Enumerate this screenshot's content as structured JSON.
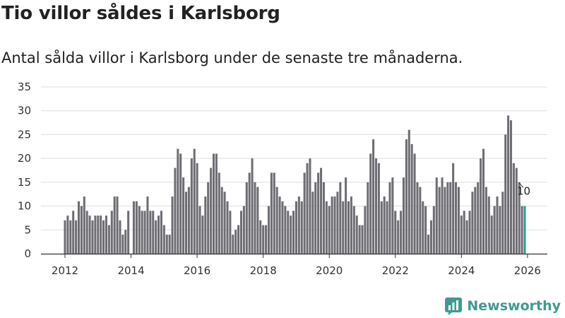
{
  "title": "Tio villor såldes i Karlsborg",
  "subtitle": "Antal sålda villor i Karlsborg under de senaste tre månaderna.",
  "brand": {
    "name": "Newsworthy"
  },
  "colors": {
    "bar": "#6e6d73",
    "highlight": "#2a9d8f",
    "grid": "#dddddd",
    "brand": "#3f9a91"
  },
  "chart_data": {
    "type": "bar",
    "title": "Tio villor såldes i Karlsborg",
    "xlabel": "",
    "ylabel": "",
    "ylim": [
      0,
      35
    ],
    "yticks": [
      0,
      5,
      10,
      15,
      20,
      25,
      30,
      35
    ],
    "xticks": [
      "2012",
      "2014",
      "2016",
      "2018",
      "2020",
      "2022",
      "2024",
      "2026"
    ],
    "start": "2012-01",
    "end": "2026-01",
    "highlight_label": "10",
    "values": [
      7,
      8,
      7,
      9,
      7,
      11,
      10,
      12,
      9,
      8,
      7,
      8,
      8,
      8,
      7,
      8,
      6,
      9,
      12,
      12,
      7,
      4,
      5,
      9,
      0,
      11,
      11,
      10,
      9,
      9,
      12,
      9,
      9,
      7,
      8,
      9,
      6,
      4,
      4,
      12,
      18,
      22,
      21,
      16,
      13,
      14,
      20,
      22,
      19,
      10,
      8,
      12,
      15,
      18,
      21,
      21,
      17,
      14,
      13,
      11,
      9,
      4,
      5,
      6,
      9,
      10,
      15,
      17,
      20,
      15,
      14,
      7,
      6,
      6,
      10,
      17,
      17,
      14,
      12,
      11,
      10,
      9,
      8,
      9,
      11,
      12,
      11,
      17,
      19,
      20,
      13,
      15,
      17,
      18,
      15,
      11,
      10,
      12,
      12,
      13,
      15,
      11,
      16,
      11,
      12,
      10,
      8,
      6,
      6,
      10,
      15,
      21,
      24,
      20,
      19,
      11,
      12,
      11,
      15,
      16,
      9,
      7,
      9,
      16,
      24,
      26,
      23,
      21,
      15,
      14,
      11,
      10,
      4,
      7,
      10,
      16,
      14,
      16,
      14,
      15,
      15,
      19,
      15,
      14,
      8,
      9,
      7,
      9,
      13,
      14,
      15,
      20,
      22,
      14,
      12,
      8,
      10,
      12,
      10,
      13,
      25,
      29,
      28,
      19,
      18,
      15,
      10,
      10
    ]
  }
}
